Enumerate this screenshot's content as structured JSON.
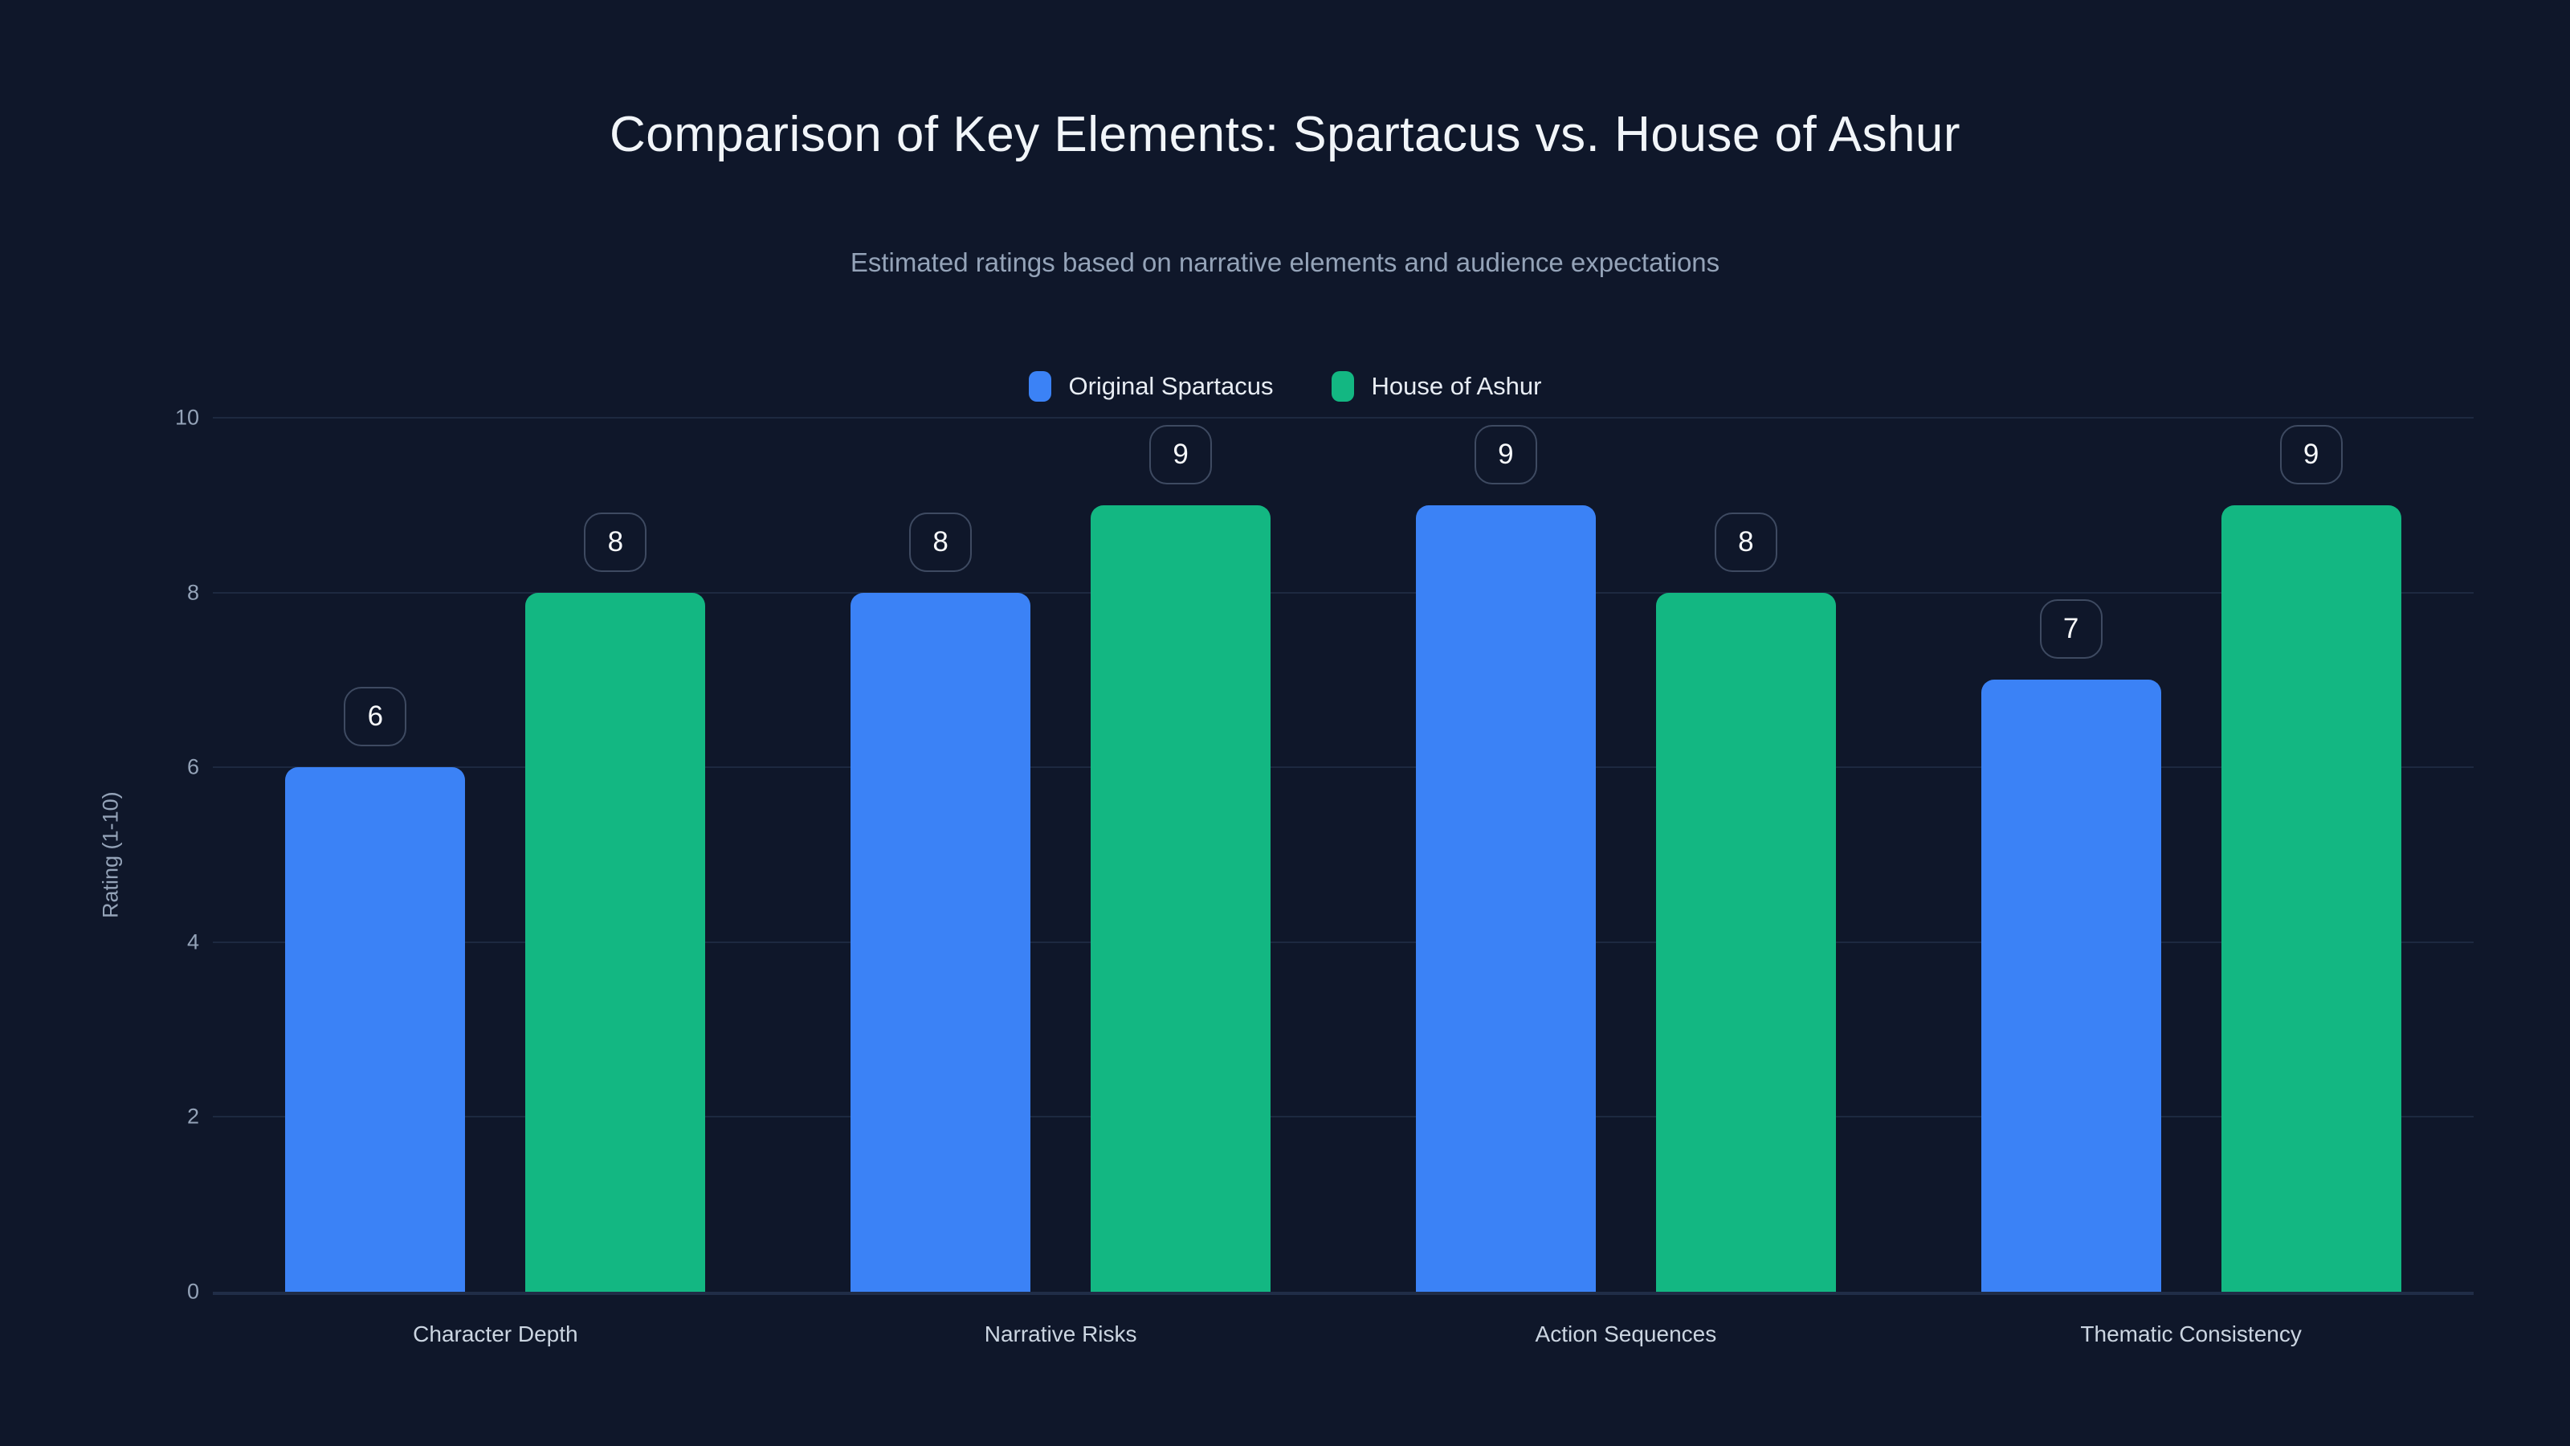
{
  "chart_data": {
    "type": "bar",
    "title": "Comparison of Key Elements: Spartacus vs. House of Ashur",
    "subtitle": "Estimated ratings based on narrative elements and audience expectations",
    "categories": [
      "Character Depth",
      "Narrative Risks",
      "Action Sequences",
      "Thematic Consistency"
    ],
    "series": [
      {
        "name": "Original Spartacus",
        "color": "#3b82f6",
        "values": [
          6,
          8,
          9,
          7
        ]
      },
      {
        "name": "House of Ashur",
        "color": "#13b782",
        "values": [
          8,
          9,
          8,
          9
        ]
      }
    ],
    "xlabel": "",
    "ylabel": "Rating (1-10)",
    "ylim": [
      0,
      10
    ],
    "yticks": [
      0,
      2,
      4,
      6,
      8,
      10
    ],
    "grid": true,
    "legend_position": "top-center",
    "value_labels": true,
    "colors": {
      "background": "#0f172a",
      "title_text": "#f1f5f9",
      "subtitle_text": "#94a3b8",
      "axis_text": "#94a3b8",
      "category_text": "#cbd5e1",
      "gridline": "#1d2940",
      "value_chip_border": "#3e4a61",
      "value_chip_text": "#f8fafc"
    }
  }
}
